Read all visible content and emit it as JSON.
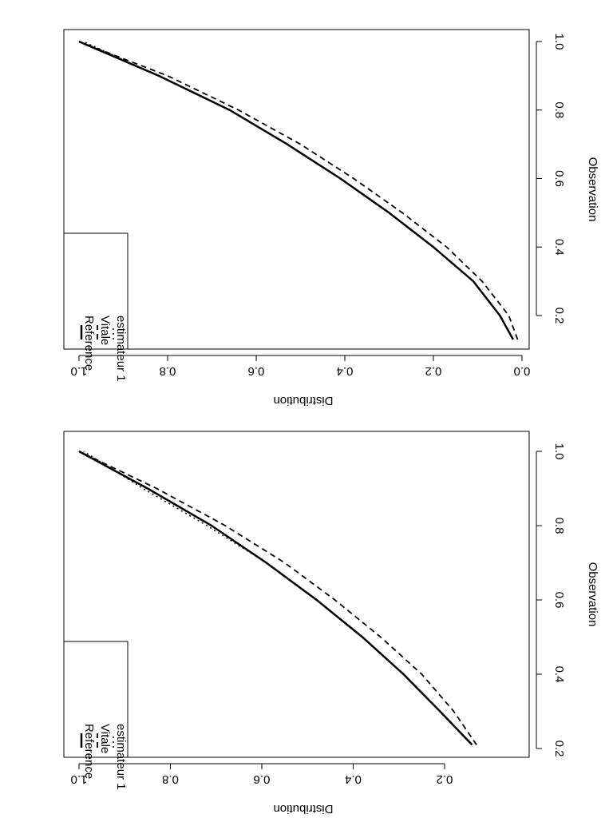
{
  "chart_data": [
    {
      "type": "line",
      "xlabel": "Observation",
      "ylabel": "Distribution",
      "xlim": [
        0.13,
        1.0
      ],
      "ylim": [
        0.0,
        1.0
      ],
      "x_ticks": [
        "0.2",
        "0.4",
        "0.6",
        "0.8",
        "1.0"
      ],
      "y_ticks": [
        "0.0",
        "0.2",
        "0.4",
        "0.6",
        "0.8",
        "1.0"
      ],
      "legend": {
        "position": "bottom-left",
        "entries": [
          "Reference",
          "Vitale",
          "estimateur 1"
        ]
      },
      "series": [
        {
          "name": "Reference",
          "style": "solid",
          "width": 2.5,
          "x": [
            0.13,
            0.2,
            0.3,
            0.4,
            0.5,
            0.6,
            0.7,
            0.8,
            0.9,
            1.0
          ],
          "y": [
            0.02,
            0.05,
            0.11,
            0.2,
            0.3,
            0.41,
            0.53,
            0.66,
            0.82,
            1.0
          ]
        },
        {
          "name": "Vitale",
          "style": "dashed",
          "width": 1.8,
          "x": [
            0.13,
            0.2,
            0.3,
            0.4,
            0.5,
            0.6,
            0.7,
            0.8,
            0.9,
            1.0
          ],
          "y": [
            0.01,
            0.03,
            0.09,
            0.17,
            0.27,
            0.38,
            0.5,
            0.64,
            0.8,
            1.0
          ]
        },
        {
          "name": "estimateur 1",
          "style": "dotted",
          "width": 1.5,
          "x": [
            0.13,
            0.2,
            0.3,
            0.4,
            0.5,
            0.6,
            0.7,
            0.8,
            0.9,
            1.0
          ],
          "y": [
            0.02,
            0.05,
            0.11,
            0.2,
            0.3,
            0.41,
            0.53,
            0.66,
            0.82,
            0.99
          ]
        }
      ]
    },
    {
      "type": "line",
      "xlabel": "Observation",
      "ylabel": "Distribution",
      "xlim": [
        0.21,
        1.0
      ],
      "ylim": [
        0.15,
        1.0
      ],
      "x_ticks": [
        "0.2",
        "0.4",
        "0.6",
        "0.8",
        "1.0"
      ],
      "y_ticks": [
        "0.2",
        "0.4",
        "0.6",
        "0.8",
        "1.0"
      ],
      "legend": {
        "position": "bottom-left",
        "entries": [
          "Reference",
          "Vitale",
          "estimateur 1"
        ]
      },
      "series": [
        {
          "name": "Reference",
          "style": "solid",
          "width": 2.5,
          "x": [
            0.21,
            0.3,
            0.4,
            0.5,
            0.6,
            0.7,
            0.8,
            0.9,
            1.0
          ],
          "y": [
            0.14,
            0.21,
            0.29,
            0.38,
            0.48,
            0.59,
            0.71,
            0.85,
            1.0
          ]
        },
        {
          "name": "Vitale",
          "style": "dashed",
          "width": 1.8,
          "x": [
            0.21,
            0.3,
            0.4,
            0.5,
            0.6,
            0.7,
            0.8,
            0.9,
            1.0
          ],
          "y": [
            0.13,
            0.18,
            0.25,
            0.34,
            0.44,
            0.55,
            0.68,
            0.83,
            1.0
          ]
        },
        {
          "name": "estimateur 1",
          "style": "dotted",
          "width": 1.5,
          "x": [
            0.21,
            0.3,
            0.4,
            0.5,
            0.6,
            0.7,
            0.8,
            0.9,
            1.0
          ],
          "y": [
            0.14,
            0.21,
            0.29,
            0.38,
            0.48,
            0.59,
            0.72,
            0.86,
            0.99
          ]
        }
      ]
    }
  ]
}
